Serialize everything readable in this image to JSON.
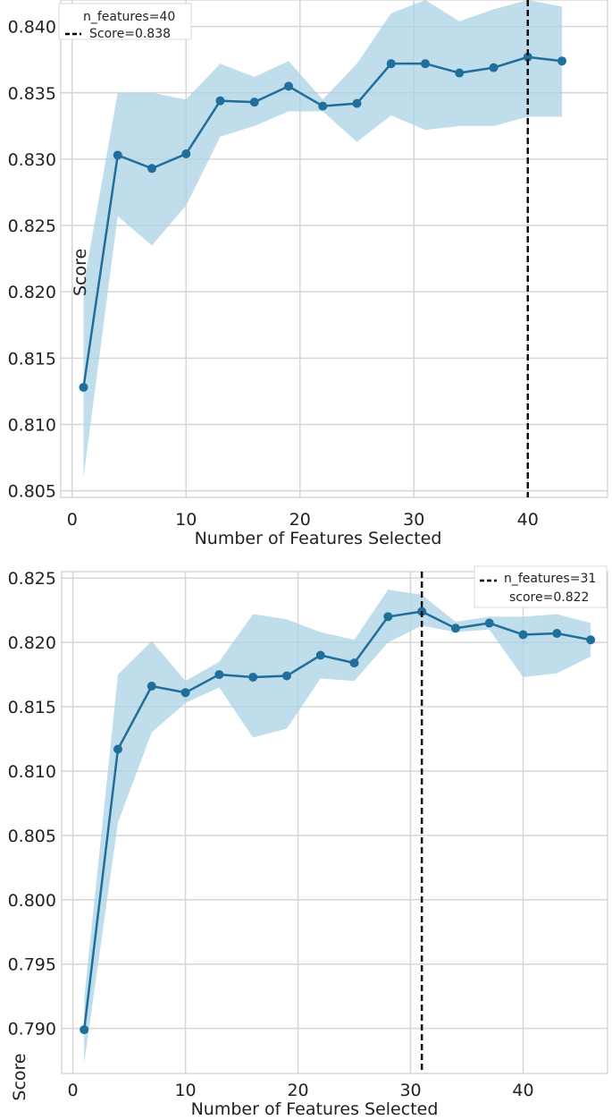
{
  "chart_data": [
    {
      "type": "line",
      "xlabel": "Number of Features Selected",
      "ylabel": "Score",
      "xlim": [
        -1,
        47
      ],
      "ylim": [
        0.8045,
        0.842
      ],
      "xticks": [
        0,
        10,
        20,
        30,
        40
      ],
      "xtick_labels": [
        "0",
        "10",
        "20",
        "30",
        "40"
      ],
      "yticks": [
        0.805,
        0.81,
        0.815,
        0.82,
        0.825,
        0.83,
        0.835,
        0.84
      ],
      "ytick_labels": [
        "0.805",
        "0.810",
        "0.815",
        "0.820",
        "0.825",
        "0.830",
        "0.835",
        "0.840"
      ],
      "grid": true,
      "legend_position": "top-left",
      "legend": [
        "n_features=40",
        "Score=0.838"
      ],
      "line_color": "#1f6e9c",
      "band_color": "#a9d1e3",
      "x": [
        1,
        4,
        7,
        10,
        13,
        16,
        19,
        22,
        25,
        28,
        31,
        34,
        37,
        40,
        43
      ],
      "series": [
        {
          "values": [
            0.8128,
            0.8303,
            0.8293,
            0.8304,
            0.8344,
            0.8343,
            0.8355,
            0.834,
            0.8342,
            0.8372,
            0.8372,
            0.8365,
            0.8369,
            0.8377,
            0.8374
          ],
          "upper": [
            0.8205,
            0.835,
            0.835,
            0.8345,
            0.8372,
            0.8362,
            0.8374,
            0.8345,
            0.8372,
            0.841,
            0.842,
            0.8404,
            0.8413,
            0.842,
            0.8415
          ],
          "lower": [
            0.806,
            0.8257,
            0.8235,
            0.8265,
            0.8317,
            0.8325,
            0.8336,
            0.8336,
            0.8313,
            0.8333,
            0.8322,
            0.8325,
            0.8325,
            0.8332,
            0.8332
          ]
        }
      ],
      "vline": {
        "x": 40,
        "style": "dashed"
      }
    },
    {
      "type": "line",
      "xlabel": "Number of Features Selected",
      "ylabel": "Score",
      "xlim": [
        -1,
        47.5
      ],
      "ylim": [
        0.7865,
        0.8255
      ],
      "xticks": [
        0,
        10,
        20,
        30,
        40
      ],
      "xtick_labels": [
        "0",
        "10",
        "20",
        "30",
        "40"
      ],
      "yticks": [
        0.79,
        0.795,
        0.8,
        0.805,
        0.81,
        0.815,
        0.82,
        0.825
      ],
      "ytick_labels": [
        "0.790",
        "0.795",
        "0.800",
        "0.805",
        "0.810",
        "0.815",
        "0.820",
        "0.825"
      ],
      "grid": true,
      "legend_position": "top-right",
      "legend": [
        "n_features=31",
        "score=0.822"
      ],
      "line_color": "#1f6e9c",
      "band_color": "#a9d1e3",
      "x": [
        1,
        4,
        7,
        10,
        13,
        16,
        19,
        22,
        25,
        28,
        31,
        34,
        37,
        40,
        43,
        46
      ],
      "series": [
        {
          "values": [
            0.7899,
            0.8117,
            0.8166,
            0.8161,
            0.8175,
            0.8173,
            0.8174,
            0.819,
            0.8184,
            0.822,
            0.8224,
            0.8211,
            0.8215,
            0.8206,
            0.8207,
            0.8202
          ],
          "upper": [
            0.7923,
            0.8175,
            0.8201,
            0.817,
            0.8185,
            0.8222,
            0.8218,
            0.8208,
            0.8202,
            0.8241,
            0.8237,
            0.8216,
            0.822,
            0.822,
            0.8222,
            0.8215
          ],
          "lower": [
            0.7873,
            0.806,
            0.813,
            0.8153,
            0.8165,
            0.8126,
            0.8133,
            0.8172,
            0.817,
            0.82,
            0.8213,
            0.8208,
            0.821,
            0.8173,
            0.8176,
            0.8189
          ]
        }
      ],
      "vline": {
        "x": 31,
        "style": "dashed"
      }
    }
  ]
}
